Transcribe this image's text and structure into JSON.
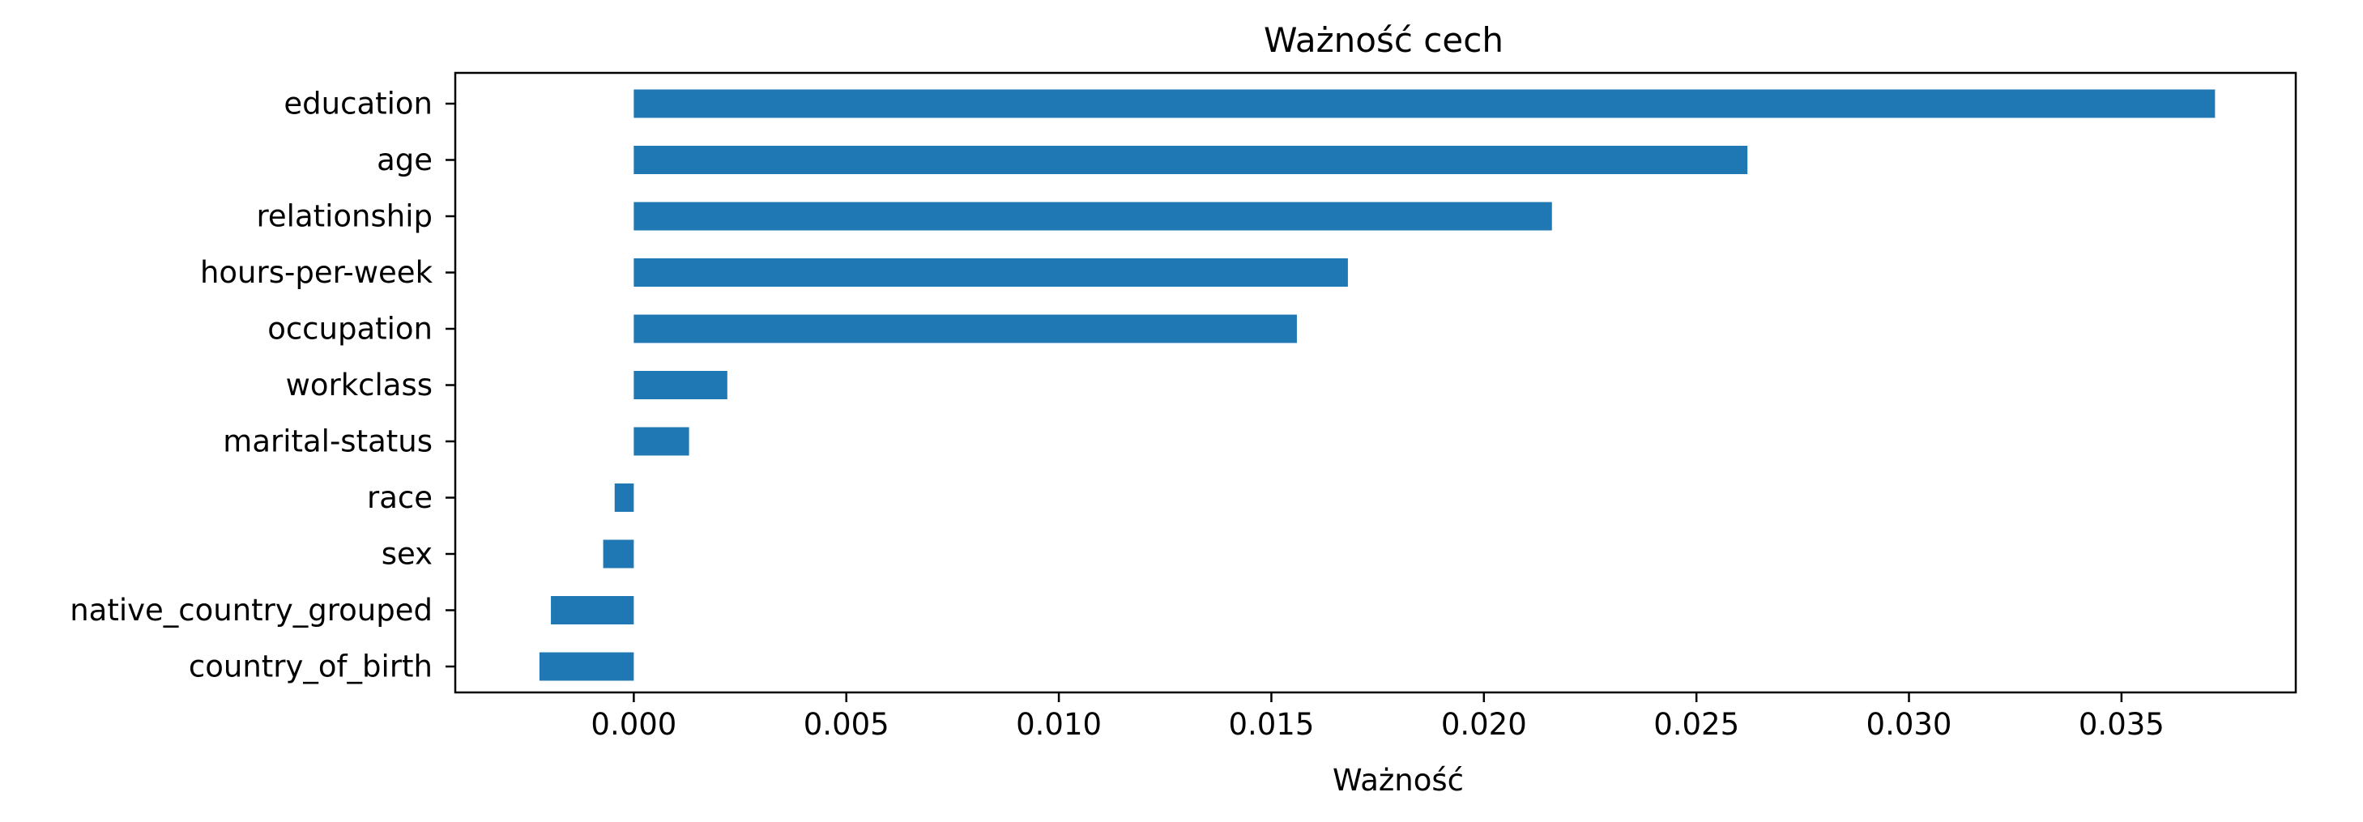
{
  "chart_data": {
    "type": "bar",
    "orientation": "horizontal",
    "title": "Ważność cech",
    "xlabel": "Ważność",
    "ylabel": "",
    "categories": [
      "education",
      "age",
      "relationship",
      "hours-per-week",
      "occupation",
      "workclass",
      "marital-status",
      "race",
      "sex",
      "native_country_grouped",
      "country_of_birth"
    ],
    "values": [
      0.0372,
      0.0262,
      0.0216,
      0.0168,
      0.0156,
      0.0022,
      0.0013,
      -0.00045,
      -0.00072,
      -0.00195,
      -0.00222
    ],
    "xlim": [
      -0.0042,
      0.0391
    ],
    "xticks": [
      0.0,
      0.005,
      0.01,
      0.015,
      0.02,
      0.025,
      0.03,
      0.035
    ],
    "xtick_labels": [
      "0.000",
      "0.005",
      "0.010",
      "0.015",
      "0.020",
      "0.025",
      "0.030",
      "0.035"
    ],
    "grid": false,
    "bar_color": "#1f77b4"
  }
}
